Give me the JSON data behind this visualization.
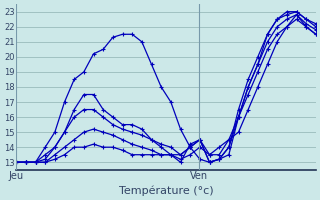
{
  "xlabel": "Température (°c)",
  "bg_color": "#cce8e8",
  "line_color": "#0000bb",
  "grid_color": "#99bbbb",
  "ylim": [
    12.5,
    23.5
  ],
  "yticks": [
    13,
    14,
    15,
    16,
    17,
    18,
    19,
    20,
    21,
    22,
    23
  ],
  "xlim": [
    0,
    32
  ],
  "jeu_x": 0,
  "ven_x": 19.5,
  "series": [
    [
      13,
      13,
      13,
      14,
      15,
      17,
      18.5,
      19,
      20.2,
      20.5,
      21.3,
      21.5,
      21.5,
      21.0,
      19.5,
      18,
      17,
      15.2,
      14,
      13.2,
      13.0,
      13.2,
      13.5,
      16,
      18,
      19.5,
      21.5,
      22.5,
      23,
      23.0,
      22.5,
      22.0
    ],
    [
      13,
      13,
      13.0,
      13.5,
      14,
      15,
      16.5,
      17.5,
      17.5,
      16.5,
      16,
      15.5,
      15.5,
      15.2,
      14.5,
      14,
      13.5,
      13.0,
      14.2,
      14.5,
      13.0,
      13.2,
      14.0,
      16.5,
      18.5,
      20,
      21.5,
      22.5,
      22.8,
      23.0,
      22.5,
      22.2
    ],
    [
      13,
      13,
      13.0,
      13.2,
      14,
      15,
      16,
      16.5,
      16.5,
      16.0,
      15.5,
      15.2,
      15.0,
      14.8,
      14.5,
      14.2,
      14.0,
      13.5,
      14.0,
      14.5,
      13.0,
      13.2,
      14.0,
      16.0,
      18.0,
      19.5,
      21.0,
      22.0,
      22.5,
      22.8,
      22.2,
      21.8
    ],
    [
      13,
      13,
      13.0,
      13.0,
      13.5,
      14,
      14.5,
      15,
      15.2,
      15.0,
      14.8,
      14.5,
      14.2,
      14.0,
      13.8,
      13.5,
      13.5,
      13.2,
      13.5,
      14.0,
      13.5,
      13.5,
      14.5,
      16.0,
      17.5,
      19.0,
      20.5,
      21.5,
      22.0,
      22.8,
      22.0,
      21.5
    ],
    [
      13,
      13,
      13.0,
      13.0,
      13.2,
      13.5,
      14,
      14,
      14.2,
      14.0,
      14.0,
      13.8,
      13.5,
      13.5,
      13.5,
      13.5,
      13.5,
      13.5,
      14.0,
      14.5,
      13.5,
      14.0,
      14.5,
      15.0,
      16.5,
      18.0,
      19.5,
      21.0,
      22.0,
      22.5,
      22.0,
      21.5
    ]
  ],
  "marker": "+",
  "marker_size": 3.5,
  "linewidth": 0.9,
  "figsize": [
    3.2,
    2.0
  ],
  "dpi": 100
}
